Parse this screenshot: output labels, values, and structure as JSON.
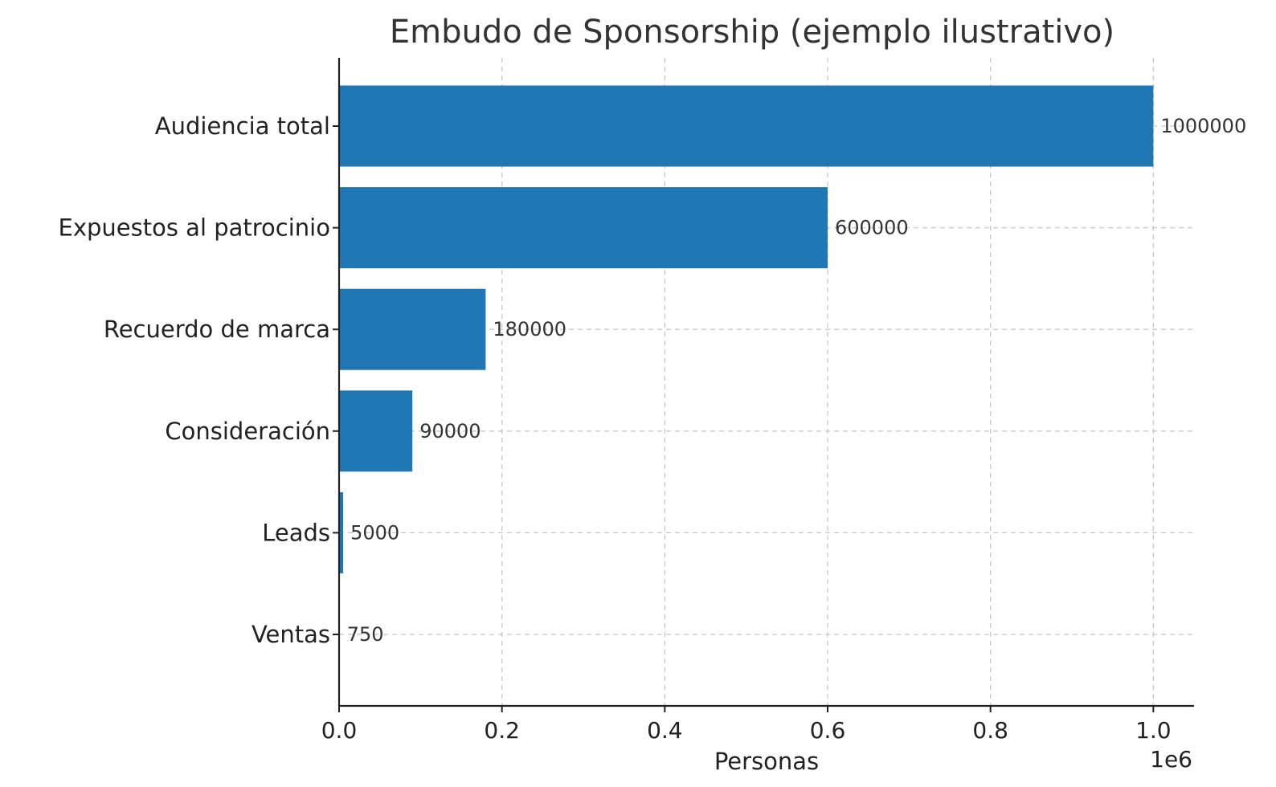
{
  "chart_data": {
    "type": "bar",
    "orientation": "horizontal",
    "title": "Embudo de Sponsorship (ejemplo ilustrativo)",
    "xlabel": "Personas",
    "ylabel": "",
    "x_offset_label": "1e6",
    "categories": [
      "Audiencia total",
      "Expuestos al patrocinio",
      "Recuerdo de marca",
      "Consideración",
      "Leads",
      "Ventas"
    ],
    "values": [
      1000000,
      600000,
      180000,
      90000,
      5000,
      750
    ],
    "value_labels": [
      "1000000",
      "600000",
      "180000",
      "90000",
      "5000",
      "750"
    ],
    "xlim": [
      0,
      1050000
    ],
    "x_ticks": [
      0,
      200000,
      400000,
      600000,
      800000,
      1000000
    ],
    "x_tick_labels": [
      "0.0",
      "0.2",
      "0.4",
      "0.6",
      "0.8",
      "1.0"
    ],
    "grid": true,
    "bar_color": "#1f77b4"
  }
}
